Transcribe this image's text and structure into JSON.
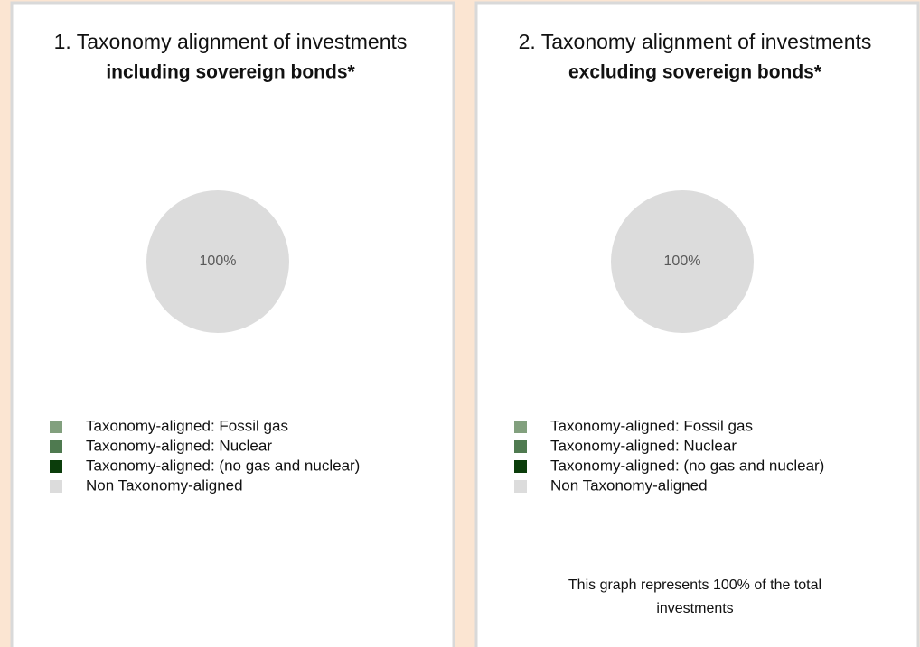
{
  "chart_data": [
    {
      "type": "pie",
      "title": "1. Taxonomy alignment of investments",
      "subtitle": "including sovereign bonds*",
      "categories": [
        "Taxonomy-aligned: Fossil gas",
        "Taxonomy-aligned: Nuclear",
        "Taxonomy-aligned: (no gas and nuclear)",
        "Non Taxonomy-aligned"
      ],
      "values": [
        0,
        0,
        0,
        100
      ],
      "value_labels": [
        null,
        null,
        null,
        "100%"
      ],
      "colors": [
        "#82a07e",
        "#4f7a50",
        "#0b3d0b",
        "#dcdcdc"
      ],
      "legend": "bottom"
    },
    {
      "type": "pie",
      "title": "2. Taxonomy alignment of investments",
      "subtitle": "excluding sovereign bonds*",
      "categories": [
        "Taxonomy-aligned: Fossil gas",
        "Taxonomy-aligned: Nuclear",
        "Taxonomy-aligned: (no gas and nuclear)",
        "Non Taxonomy-aligned"
      ],
      "values": [
        0,
        0,
        0,
        100
      ],
      "value_labels": [
        null,
        null,
        null,
        "100%"
      ],
      "colors": [
        "#82a07e",
        "#4f7a50",
        "#0b3d0b",
        "#dcdcdc"
      ],
      "legend": "bottom",
      "annotation": "This graph represents 100% of the total investments"
    }
  ]
}
